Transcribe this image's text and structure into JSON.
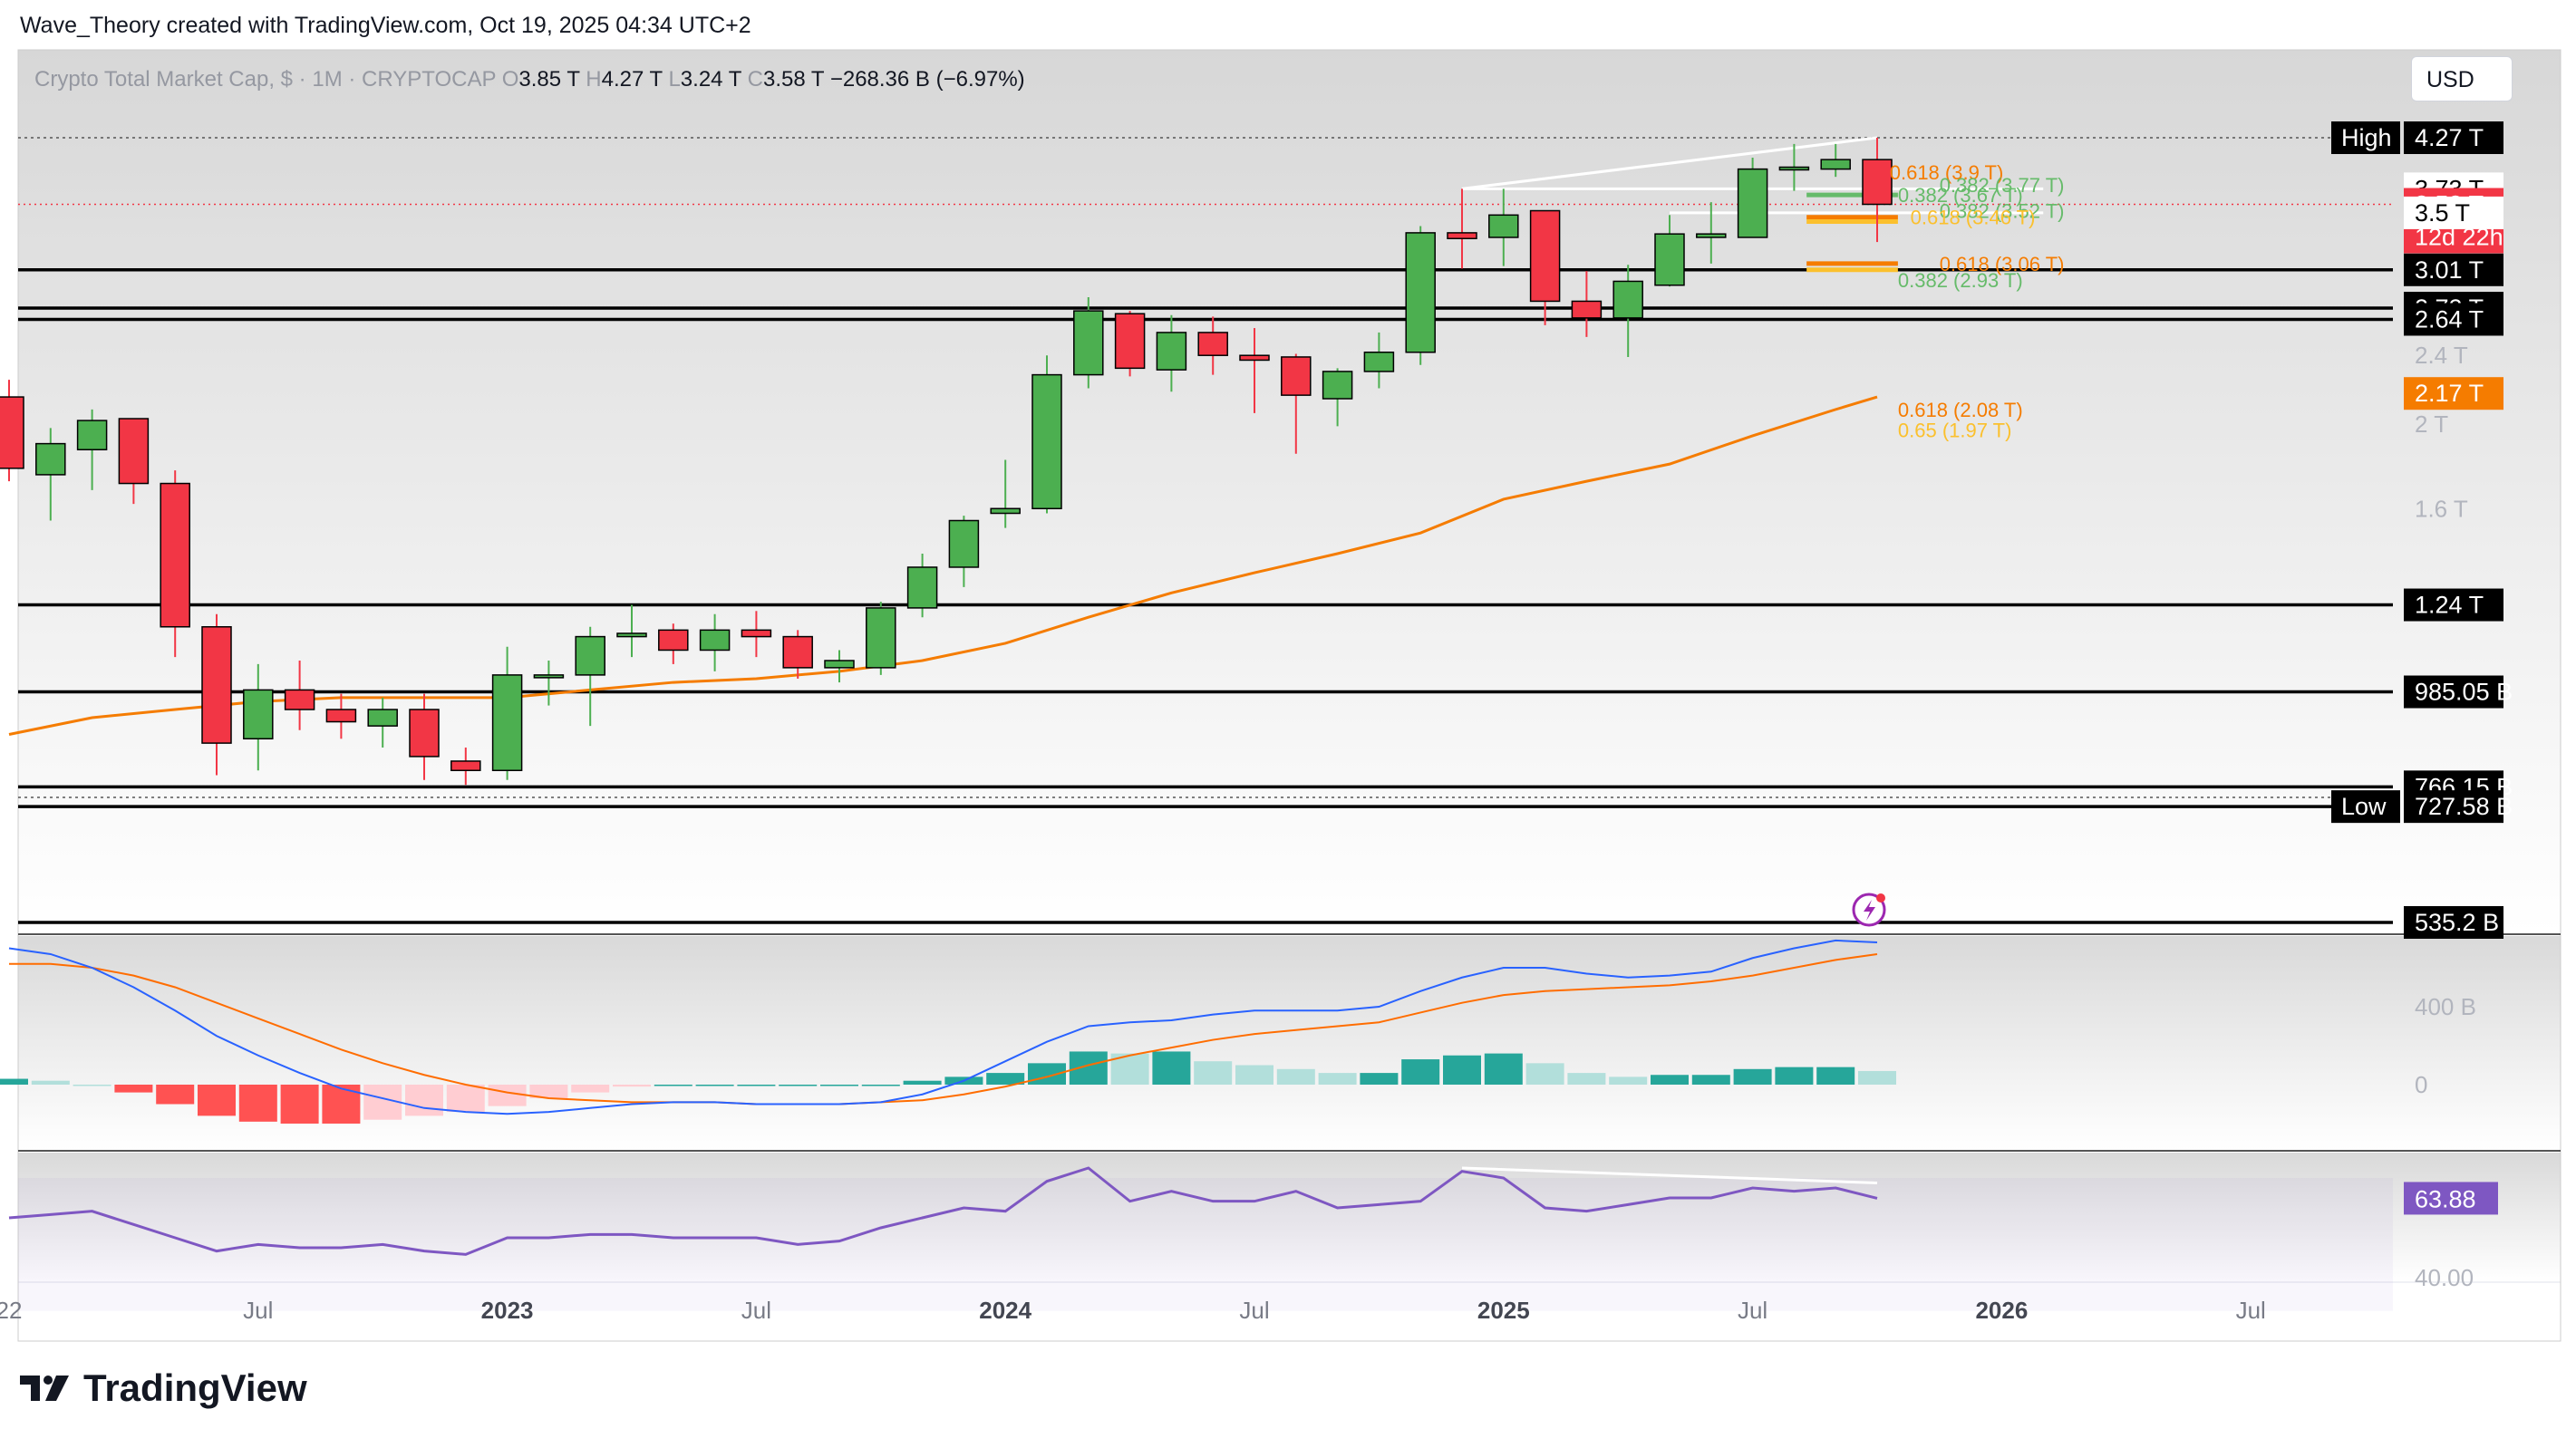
{
  "attribution": "Wave_Theory created with TradingView.com, Oct 19, 2025 04:34 UTC+2",
  "brand": {
    "name": "TradingView",
    "logo_icon": "tradingview-logo-icon"
  },
  "currency_button": "USD",
  "colors": {
    "up": "#4caf50",
    "down": "#f23645",
    "ema": "#f57c00",
    "macd_line": "#2962ff",
    "signal_line": "#ff6d00",
    "hist_up_strong": "#26a69a",
    "hist_up_weak": "#b2dfdb",
    "hist_down_strong": "#ff5252",
    "hist_down_weak": "#ffcdd2",
    "rsi": "#7e57c2",
    "fib_green": "#66bb6a",
    "fib_orange": "#f57c00",
    "fib_yellow": "#fbc02d"
  },
  "chart_data": {
    "type": "candlestick",
    "legend": {
      "symbol": "Crypto Total Market Cap, $ · 1M · CRYPTOCAP",
      "o_label": "O",
      "o": "3.85 T",
      "h_label": "H",
      "h": "4.27 T",
      "l_label": "L",
      "l": "3.24 T",
      "c_label": "C",
      "c": "3.58 T",
      "change": "−268.36 B (−6.97%)"
    },
    "y_scale": "log",
    "y_unit": "T",
    "price_axis_ticks": [
      {
        "value": 2.4,
        "label": "2.4 T"
      },
      {
        "value": 2.0,
        "label": "2 T"
      },
      {
        "value": 1.6,
        "label": "1.6 T"
      },
      {
        "value": 0.4,
        "label": "400 B",
        "pane": "macd"
      },
      {
        "value": 0,
        "label": "0",
        "pane": "macd"
      },
      {
        "value": 40,
        "label": "40.00",
        "pane": "rsi"
      }
    ],
    "time_axis_labels": [
      {
        "t": 0,
        "label": "22"
      },
      {
        "t": 6,
        "label": "Jul"
      },
      {
        "t": 12,
        "label": "2023"
      },
      {
        "t": 18,
        "label": "Jul"
      },
      {
        "t": 24,
        "label": "2024"
      },
      {
        "t": 30,
        "label": "Jul"
      },
      {
        "t": 36,
        "label": "2025"
      },
      {
        "t": 42,
        "label": "Jul"
      },
      {
        "t": 48,
        "label": "2026"
      },
      {
        "t": 54,
        "label": "Jul"
      }
    ],
    "candles": [
      {
        "t": 0,
        "o": 2.15,
        "h": 2.25,
        "l": 1.72,
        "c": 1.78
      },
      {
        "t": 1,
        "o": 1.75,
        "h": 1.98,
        "l": 1.55,
        "c": 1.9
      },
      {
        "t": 2,
        "o": 1.87,
        "h": 2.08,
        "l": 1.68,
        "c": 2.02
      },
      {
        "t": 3,
        "o": 2.03,
        "h": 2.02,
        "l": 1.62,
        "c": 1.71
      },
      {
        "t": 4,
        "o": 1.71,
        "h": 1.77,
        "l": 1.08,
        "c": 1.17
      },
      {
        "t": 5,
        "o": 1.17,
        "h": 1.21,
        "l": 0.79,
        "c": 0.86
      },
      {
        "t": 6,
        "o": 0.87,
        "h": 1.06,
        "l": 0.8,
        "c": 0.99
      },
      {
        "t": 7,
        "o": 0.99,
        "h": 1.07,
        "l": 0.89,
        "c": 0.94
      },
      {
        "t": 8,
        "o": 0.94,
        "h": 0.98,
        "l": 0.87,
        "c": 0.91
      },
      {
        "t": 9,
        "o": 0.9,
        "h": 0.97,
        "l": 0.85,
        "c": 0.94
      },
      {
        "t": 10,
        "o": 0.94,
        "h": 0.98,
        "l": 0.78,
        "c": 0.83
      },
      {
        "t": 11,
        "o": 0.82,
        "h": 0.85,
        "l": 0.77,
        "c": 0.8
      },
      {
        "t": 12,
        "o": 0.8,
        "h": 1.11,
        "l": 0.78,
        "c": 1.03
      },
      {
        "t": 13,
        "o": 1.03,
        "h": 1.07,
        "l": 0.95,
        "c": 1.03
      },
      {
        "t": 14,
        "o": 1.03,
        "h": 1.17,
        "l": 0.9,
        "c": 1.14
      },
      {
        "t": 15,
        "o": 1.14,
        "h": 1.24,
        "l": 1.08,
        "c": 1.15
      },
      {
        "t": 16,
        "o": 1.16,
        "h": 1.18,
        "l": 1.06,
        "c": 1.1
      },
      {
        "t": 17,
        "o": 1.1,
        "h": 1.21,
        "l": 1.04,
        "c": 1.16
      },
      {
        "t": 18,
        "o": 1.16,
        "h": 1.22,
        "l": 1.08,
        "c": 1.14
      },
      {
        "t": 19,
        "o": 1.14,
        "h": 1.16,
        "l": 1.02,
        "c": 1.05
      },
      {
        "t": 20,
        "o": 1.05,
        "h": 1.1,
        "l": 1.01,
        "c": 1.07
      },
      {
        "t": 21,
        "o": 1.05,
        "h": 1.25,
        "l": 1.03,
        "c": 1.23
      },
      {
        "t": 22,
        "o": 1.23,
        "h": 1.42,
        "l": 1.2,
        "c": 1.37
      },
      {
        "t": 23,
        "o": 1.37,
        "h": 1.57,
        "l": 1.3,
        "c": 1.55
      },
      {
        "t": 24,
        "o": 1.58,
        "h": 1.82,
        "l": 1.52,
        "c": 1.6
      },
      {
        "t": 25,
        "o": 1.6,
        "h": 2.4,
        "l": 1.58,
        "c": 2.28
      },
      {
        "t": 26,
        "o": 2.28,
        "h": 2.8,
        "l": 2.2,
        "c": 2.7
      },
      {
        "t": 27,
        "o": 2.68,
        "h": 2.7,
        "l": 2.27,
        "c": 2.32
      },
      {
        "t": 28,
        "o": 2.31,
        "h": 2.67,
        "l": 2.18,
        "c": 2.55
      },
      {
        "t": 29,
        "o": 2.55,
        "h": 2.66,
        "l": 2.28,
        "c": 2.4
      },
      {
        "t": 30,
        "o": 2.4,
        "h": 2.58,
        "l": 2.06,
        "c": 2.37
      },
      {
        "t": 31,
        "o": 2.39,
        "h": 2.41,
        "l": 1.85,
        "c": 2.16
      },
      {
        "t": 32,
        "o": 2.14,
        "h": 2.32,
        "l": 1.99,
        "c": 2.3
      },
      {
        "t": 33,
        "o": 2.3,
        "h": 2.55,
        "l": 2.2,
        "c": 2.42
      },
      {
        "t": 34,
        "o": 2.42,
        "h": 3.38,
        "l": 2.34,
        "c": 3.32
      },
      {
        "t": 35,
        "o": 3.32,
        "h": 3.73,
        "l": 3.02,
        "c": 3.27
      },
      {
        "t": 36,
        "o": 3.28,
        "h": 3.73,
        "l": 3.04,
        "c": 3.48
      },
      {
        "t": 37,
        "o": 3.52,
        "h": 3.51,
        "l": 2.6,
        "c": 2.77
      },
      {
        "t": 38,
        "o": 2.77,
        "h": 3.0,
        "l": 2.52,
        "c": 2.65
      },
      {
        "t": 39,
        "o": 2.65,
        "h": 3.05,
        "l": 2.39,
        "c": 2.92
      },
      {
        "t": 40,
        "o": 2.89,
        "h": 3.48,
        "l": 2.88,
        "c": 3.31
      },
      {
        "t": 41,
        "o": 3.28,
        "h": 3.6,
        "l": 3.06,
        "c": 3.31
      },
      {
        "t": 42,
        "o": 3.28,
        "h": 4.05,
        "l": 3.28,
        "c": 3.93
      },
      {
        "t": 43,
        "o": 3.93,
        "h": 4.2,
        "l": 3.71,
        "c": 3.95
      },
      {
        "t": 44,
        "o": 3.93,
        "h": 4.2,
        "l": 3.85,
        "c": 4.03
      },
      {
        "t": 45,
        "o": 4.03,
        "h": 4.27,
        "l": 3.24,
        "c": 3.58
      }
    ],
    "ema": [
      {
        "t": 0,
        "v": 0.88
      },
      {
        "t": 2,
        "v": 0.92
      },
      {
        "t": 4,
        "v": 0.94
      },
      {
        "t": 6,
        "v": 0.96
      },
      {
        "t": 8,
        "v": 0.97
      },
      {
        "t": 10,
        "v": 0.97
      },
      {
        "t": 12,
        "v": 0.97
      },
      {
        "t": 14,
        "v": 0.99
      },
      {
        "t": 16,
        "v": 1.01
      },
      {
        "t": 18,
        "v": 1.02
      },
      {
        "t": 20,
        "v": 1.04
      },
      {
        "t": 22,
        "v": 1.07
      },
      {
        "t": 24,
        "v": 1.12
      },
      {
        "t": 26,
        "v": 1.2
      },
      {
        "t": 28,
        "v": 1.28
      },
      {
        "t": 30,
        "v": 1.35
      },
      {
        "t": 32,
        "v": 1.42
      },
      {
        "t": 34,
        "v": 1.5
      },
      {
        "t": 36,
        "v": 1.64
      },
      {
        "t": 38,
        "v": 1.72
      },
      {
        "t": 40,
        "v": 1.8
      },
      {
        "t": 42,
        "v": 1.94
      },
      {
        "t": 44,
        "v": 2.08
      },
      {
        "t": 45,
        "v": 2.15
      }
    ],
    "horizontal_levels": [
      3.01,
      2.72,
      2.64,
      1.24,
      0.985,
      0.766,
      0.727,
      0.535
    ],
    "dotted_levels": [
      4.27,
      0.745
    ],
    "price_line": 3.58,
    "price_labels": [
      {
        "value": 4.27,
        "label": "4.27 T",
        "tag": "High",
        "style": "dark"
      },
      {
        "value": 3.73,
        "label": "3.73 T",
        "style": "light"
      },
      {
        "value": 3.73,
        "label": "3.73 T",
        "style": "light",
        "offset": 1
      },
      {
        "value": 3.58,
        "label": "3.58 T",
        "sublabel": "12d 22h",
        "style": "red"
      },
      {
        "value": 3.5,
        "label": "3.5 T",
        "style": "light"
      },
      {
        "value": 3.01,
        "label": "3.01 T",
        "style": "dark"
      },
      {
        "value": 2.72,
        "label": "2.72 T",
        "style": "dark"
      },
      {
        "value": 2.64,
        "label": "2.64 T",
        "style": "dark"
      },
      {
        "value": 2.17,
        "label": "2.17 T",
        "style": "orange"
      },
      {
        "value": 1.24,
        "label": "1.24 T",
        "style": "dark"
      },
      {
        "value": 0.985,
        "label": "985.05 B",
        "style": "dark"
      },
      {
        "value": 0.766,
        "label": "766.15 B",
        "style": "dark"
      },
      {
        "value": 0.727,
        "label": "727.58 B",
        "tag": "Low",
        "style": "dark"
      },
      {
        "value": 0.535,
        "label": "535.2 B",
        "style": "dark"
      }
    ],
    "fib_labels": [
      {
        "t": 45.3,
        "value": 3.9,
        "label": "0.618 (3.9 T)",
        "color": "fib_orange"
      },
      {
        "t": 46.5,
        "value": 3.77,
        "label": "0.382 (3.77 T)",
        "color": "fib_green"
      },
      {
        "t": 45.5,
        "value": 3.67,
        "label": "0.382 (3.67 T)",
        "color": "fib_green"
      },
      {
        "t": 46.5,
        "value": 3.52,
        "label": "0.382 (3.52 T)",
        "color": "fib_green"
      },
      {
        "t": 45.8,
        "value": 3.46,
        "label": "0.618 (3.46 T)",
        "color": "fib_yellow"
      },
      {
        "t": 46.5,
        "value": 3.06,
        "label": "0.618 (3.06 T)",
        "color": "fib_orange"
      },
      {
        "t": 45.5,
        "value": 2.93,
        "label": "0.382 (2.93 T)",
        "color": "fib_green"
      },
      {
        "t": 45.5,
        "value": 2.08,
        "label": "0.618 (2.08 T)",
        "color": "fib_orange"
      },
      {
        "t": 45.5,
        "value": 1.97,
        "label": "0.65 (1.97 T)",
        "color": "fib_yellow"
      }
    ],
    "trendlines": [
      {
        "t1": 35,
        "v1": 3.73,
        "t2": 45,
        "v2": 4.27
      },
      {
        "t1": 35,
        "v1": 3.73,
        "t2": 49,
        "v2": 3.73
      },
      {
        "t1": 40,
        "v1": 3.5,
        "t2": 49,
        "v2": 3.5
      }
    ],
    "macd": {
      "macd_line": [
        0.7,
        0.67,
        0.6,
        0.5,
        0.38,
        0.25,
        0.15,
        0.06,
        -0.02,
        -0.07,
        -0.12,
        -0.14,
        -0.15,
        -0.14,
        -0.12,
        -0.1,
        -0.09,
        -0.09,
        -0.1,
        -0.1,
        -0.1,
        -0.09,
        -0.05,
        0.02,
        0.12,
        0.22,
        0.3,
        0.32,
        0.33,
        0.36,
        0.38,
        0.38,
        0.38,
        0.4,
        0.48,
        0.55,
        0.6,
        0.6,
        0.57,
        0.55,
        0.56,
        0.58,
        0.65,
        0.7,
        0.74,
        0.73
      ],
      "signal_line": [
        0.62,
        0.62,
        0.6,
        0.56,
        0.5,
        0.42,
        0.34,
        0.26,
        0.18,
        0.11,
        0.05,
        0.0,
        -0.04,
        -0.07,
        -0.08,
        -0.09,
        -0.09,
        -0.09,
        -0.1,
        -0.1,
        -0.1,
        -0.09,
        -0.08,
        -0.05,
        -0.01,
        0.04,
        0.1,
        0.15,
        0.19,
        0.23,
        0.26,
        0.28,
        0.3,
        0.32,
        0.37,
        0.42,
        0.46,
        0.48,
        0.49,
        0.5,
        0.51,
        0.53,
        0.56,
        0.6,
        0.64,
        0.67
      ],
      "histogram": [
        0.03,
        0.02,
        0.0,
        -0.04,
        -0.1,
        -0.16,
        -0.19,
        -0.2,
        -0.2,
        -0.18,
        -0.16,
        -0.14,
        -0.11,
        -0.07,
        -0.04,
        -0.01,
        -0.0,
        -0.0,
        -0.0,
        -0.0,
        0.0,
        0.0,
        0.02,
        0.04,
        0.06,
        0.11,
        0.17,
        0.16,
        0.17,
        0.12,
        0.1,
        0.08,
        0.06,
        0.06,
        0.13,
        0.15,
        0.16,
        0.11,
        0.06,
        0.04,
        0.05,
        0.05,
        0.08,
        0.09,
        0.09,
        0.07
      ]
    },
    "rsi": {
      "current_label": "63.88",
      "values": [
        58,
        59,
        60,
        56,
        52,
        48,
        50,
        49,
        49,
        50,
        48,
        47,
        52,
        52,
        53,
        53,
        52,
        52,
        52,
        50,
        51,
        55,
        58,
        61,
        60,
        69,
        73,
        63,
        66,
        63,
        63,
        66,
        61,
        62,
        63,
        72,
        70,
        61,
        60,
        62,
        64,
        64,
        67,
        66,
        67,
        63.88
      ]
    }
  }
}
